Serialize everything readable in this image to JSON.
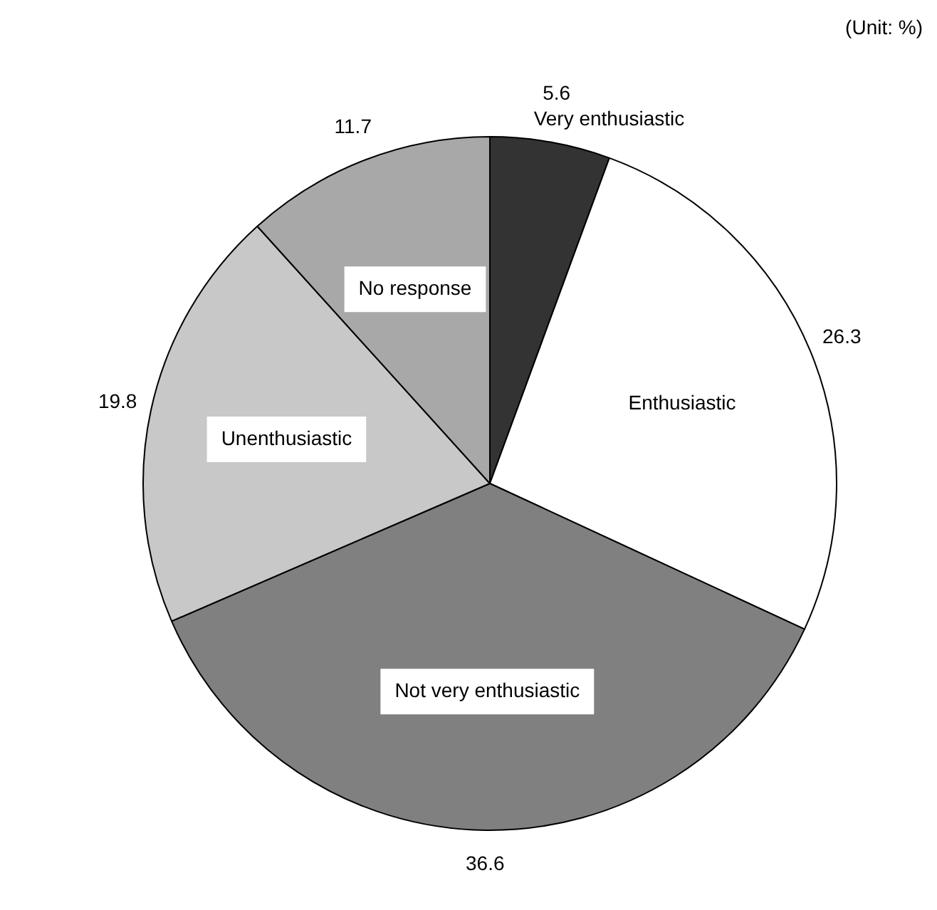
{
  "chart_data": {
    "type": "pie",
    "categories": [
      "Very enthusiastic",
      "Enthusiastic",
      "Not very enthusiastic",
      "Unenthusiastic",
      "No response"
    ],
    "values": [
      5.6,
      26.3,
      36.6,
      19.8,
      11.7
    ],
    "colors": [
      "#333333",
      "#ffffff",
      "#808080",
      "#c8c8c8",
      "#a8a8a8"
    ],
    "data_labels": true,
    "legend": false,
    "annotations": [
      "(Unit: %)"
    ]
  }
}
